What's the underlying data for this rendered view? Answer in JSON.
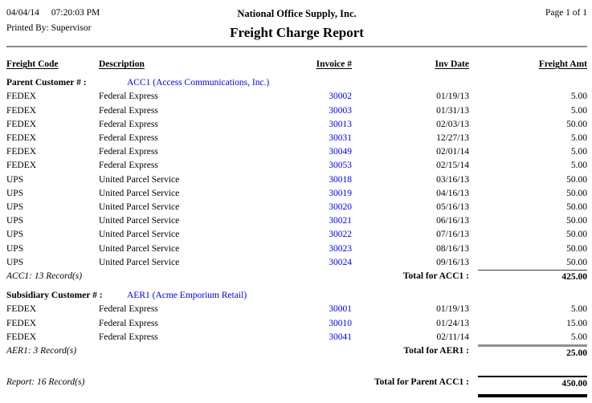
{
  "header": {
    "date": "04/04/14",
    "time": "07:20:03 PM",
    "printed_by": "Printed By: Supervisor",
    "company": "National Office Supply, Inc.",
    "report_title": "Freight Charge Report",
    "page_info": "Page 1 of 1"
  },
  "table": {
    "columns": {
      "freight_code": "Freight Code",
      "description": "Description",
      "invoice": "Invoice #",
      "inv_date": "Inv Date",
      "freight_amt": "Freight Amt"
    },
    "groups": [
      {
        "label": "Parent Customer # :",
        "customer_link": "ACC1 (Access Communications, Inc.)",
        "rows": [
          {
            "code": "FEDEX",
            "description": "Federal Express",
            "invoice": "30002",
            "date": "01/19/13",
            "amount": "5.00"
          },
          {
            "code": "FEDEX",
            "description": "Federal Express",
            "invoice": "30003",
            "date": "01/31/13",
            "amount": "5.00"
          },
          {
            "code": "FEDEX",
            "description": "Federal Express",
            "invoice": "30013",
            "date": "02/03/13",
            "amount": "50.00"
          },
          {
            "code": "FEDEX",
            "description": "Federal Express",
            "invoice": "30031",
            "date": "12/27/13",
            "amount": "5.00"
          },
          {
            "code": "FEDEX",
            "description": "Federal Express",
            "invoice": "30049",
            "date": "02/01/14",
            "amount": "5.00"
          },
          {
            "code": "FEDEX",
            "description": "Federal Express",
            "invoice": "30053",
            "date": "02/15/14",
            "amount": "5.00"
          },
          {
            "code": "UPS",
            "description": "United Parcel Service",
            "invoice": "30018",
            "date": "03/16/13",
            "amount": "50.00"
          },
          {
            "code": "UPS",
            "description": "United Parcel Service",
            "invoice": "30019",
            "date": "04/16/13",
            "amount": "50.00"
          },
          {
            "code": "UPS",
            "description": "United Parcel Service",
            "invoice": "30020",
            "date": "05/16/13",
            "amount": "50.00"
          },
          {
            "code": "UPS",
            "description": "United Parcel Service",
            "invoice": "30021",
            "date": "06/16/13",
            "amount": "50.00"
          },
          {
            "code": "UPS",
            "description": "United Parcel Service",
            "invoice": "30022",
            "date": "07/16/13",
            "amount": "50.00"
          },
          {
            "code": "UPS",
            "description": "United Parcel Service",
            "invoice": "30023",
            "date": "08/16/13",
            "amount": "50.00"
          },
          {
            "code": "UPS",
            "description": "United Parcel Service",
            "invoice": "30024",
            "date": "09/16/13",
            "amount": "50.00"
          }
        ],
        "records_label": "ACC1: 13 Record(s)",
        "total_label": "Total for ACC1 :",
        "total_amount": "425.00"
      },
      {
        "label": "Subsidiary Customer # :",
        "customer_link": "AER1 (Acme Emporium Retail)",
        "rows": [
          {
            "code": "FEDEX",
            "description": "Federal Express",
            "invoice": "30001",
            "date": "01/19/13",
            "amount": "5.00"
          },
          {
            "code": "FEDEX",
            "description": "Federal Express",
            "invoice": "30010",
            "date": "01/24/13",
            "amount": "15.00"
          },
          {
            "code": "FEDEX",
            "description": "Federal Express",
            "invoice": "30041",
            "date": "02/11/14",
            "amount": "5.00"
          }
        ],
        "records_label": "AER1: 3 Record(s)",
        "total_label": "Total for AER1 :",
        "total_amount": "25.00"
      }
    ],
    "footer": {
      "records_label": "Report: 16 Record(s)",
      "total_label": "Total for Parent ACC1 :",
      "total_amount": "450.00"
    }
  },
  "colors": {
    "link_blue": "#0000ff",
    "header_rule_gray": "#8a8a8a"
  }
}
